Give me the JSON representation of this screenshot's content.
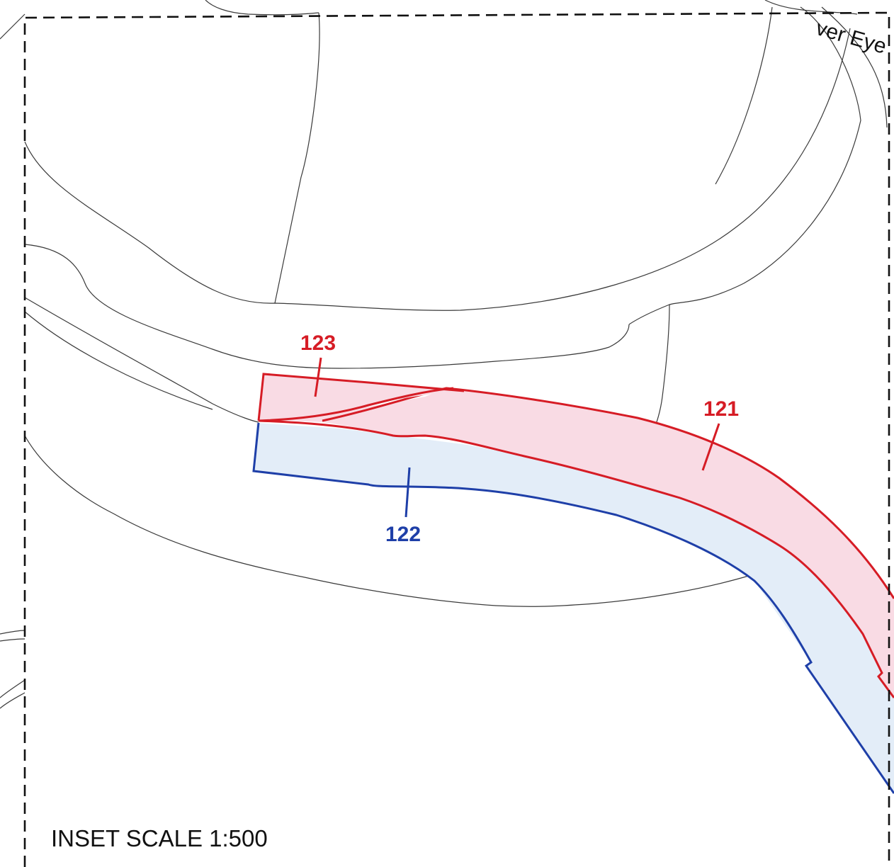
{
  "map": {
    "river_label": "ver Eye",
    "inset_scale_label": "INSET SCALE 1:500",
    "parcels": [
      {
        "id": "121",
        "label": "121",
        "line_color": "#d61c25",
        "fill_color": "#f9dbe4"
      },
      {
        "id": "122",
        "label": "122",
        "line_color": "#1e3fa8",
        "fill_color": "#e3edf8"
      },
      {
        "id": "123",
        "label": "123",
        "line_color": "#d61c25",
        "fill_color": "#f9dbe4"
      }
    ]
  }
}
